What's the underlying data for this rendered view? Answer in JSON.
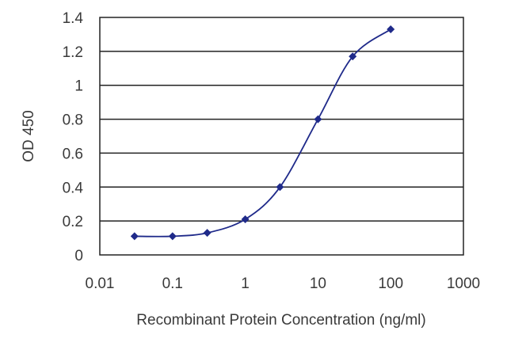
{
  "chart_data": {
    "type": "line",
    "title": "",
    "xlabel": "Recombinant Protein Concentration (ng/ml)",
    "ylabel": "OD 450",
    "x_scale": "log",
    "xlim": [
      0.01,
      1000
    ],
    "ylim": [
      0,
      1.4
    ],
    "x_ticks": [
      "0.01",
      "0.1",
      "1",
      "10",
      "100",
      "1000"
    ],
    "x_tick_values": [
      0.01,
      0.1,
      1,
      10,
      100,
      1000
    ],
    "y_ticks": [
      "0",
      "0.2",
      "0.4",
      "0.6",
      "0.8",
      "1",
      "1.2",
      "1.4"
    ],
    "y_tick_values": [
      0,
      0.2,
      0.4,
      0.6,
      0.8,
      1,
      1.2,
      1.4
    ],
    "grid": "horizontal",
    "legend": "none",
    "series": [
      {
        "color": "#1f2a8a",
        "marker": "diamond",
        "smooth": true,
        "x": [
          0.03,
          0.1,
          0.3,
          1,
          3,
          10,
          30,
          100
        ],
        "y": [
          0.11,
          0.11,
          0.13,
          0.21,
          0.4,
          0.8,
          1.17,
          1.33
        ]
      }
    ]
  }
}
